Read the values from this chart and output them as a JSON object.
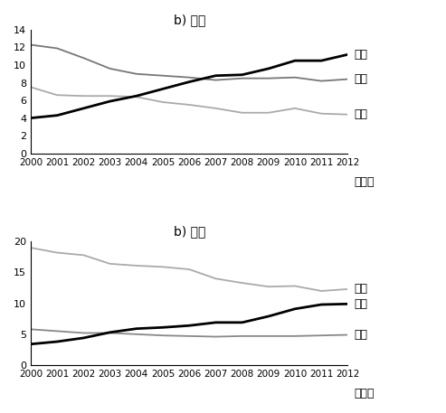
{
  "years": [
    2000,
    2001,
    2002,
    2003,
    2004,
    2005,
    2006,
    2007,
    2008,
    2009,
    2010,
    2011,
    2012
  ],
  "export": {
    "china": [
      4.0,
      4.3,
      5.1,
      5.9,
      6.5,
      7.3,
      8.1,
      8.8,
      8.9,
      9.6,
      10.5,
      10.5,
      11.2
    ],
    "usa": [
      12.3,
      11.9,
      10.8,
      9.6,
      9.0,
      8.8,
      8.6,
      8.3,
      8.5,
      8.5,
      8.6,
      8.2,
      8.4
    ],
    "japan": [
      7.5,
      6.6,
      6.5,
      6.5,
      6.4,
      5.8,
      5.5,
      5.1,
      4.6,
      4.6,
      5.1,
      4.5,
      4.4
    ]
  },
  "import": {
    "usa": [
      19.0,
      18.2,
      17.8,
      16.4,
      16.1,
      15.9,
      15.5,
      14.0,
      13.3,
      12.7,
      12.8,
      12.0,
      12.3
    ],
    "china": [
      3.4,
      3.8,
      4.4,
      5.3,
      5.9,
      6.1,
      6.4,
      6.9,
      6.9,
      7.9,
      9.1,
      9.8,
      9.9
    ],
    "japan": [
      5.8,
      5.5,
      5.2,
      5.2,
      5.0,
      4.8,
      4.7,
      4.6,
      4.7,
      4.7,
      4.7,
      4.8,
      4.9
    ]
  },
  "export_ylim": [
    0,
    14
  ],
  "import_ylim": [
    0,
    20
  ],
  "export_yticks": [
    0,
    2,
    4,
    6,
    8,
    10,
    12,
    14
  ],
  "import_yticks": [
    0,
    5,
    10,
    15,
    20
  ],
  "export_title": "b) 輸出",
  "import_title": "b) 輸入",
  "year_label": "（年）",
  "label_china": "中国",
  "label_usa": "米国",
  "label_japan": "日本",
  "color_china": "#000000",
  "color_usa_export": "#777777",
  "color_japan_export": "#aaaaaa",
  "color_usa_import": "#aaaaaa",
  "color_japan_import": "#888888",
  "lw_thick": 2.0,
  "lw_thin": 1.3
}
